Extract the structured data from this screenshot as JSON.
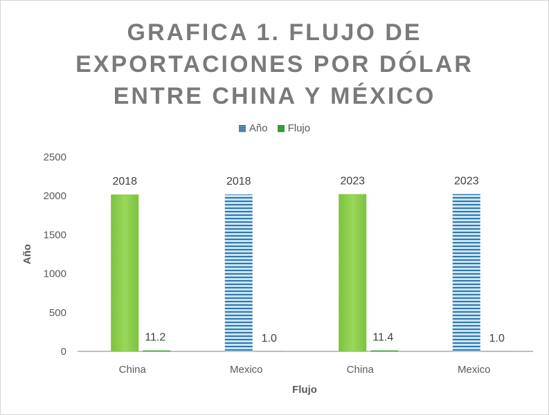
{
  "title_lines": [
    "GRAFICA 1. FLUJO DE",
    "EXPORTACIONES POR DÓLAR",
    "ENTRE CHINA Y MÉXICO"
  ],
  "legend": [
    {
      "label": "Año",
      "color": "#1f6e9c"
    },
    {
      "label": "Flujo",
      "color": "#2e9a2e"
    }
  ],
  "chart_data": {
    "type": "bar",
    "title": "GRAFICA 1. FLUJO DE EXPORTACIONES POR DÓLAR ENTRE CHINA Y MÉXICO",
    "xlabel": "Flujo",
    "ylabel": "Año",
    "categories": [
      "China",
      "Mexico",
      "China",
      "Mexico"
    ],
    "series": [
      {
        "name": "Año",
        "values": [
          2018,
          2018,
          2023,
          2023
        ],
        "labels": [
          "2018",
          "2018",
          "2023",
          "2023"
        ]
      },
      {
        "name": "Flujo",
        "values": [
          11.2,
          1.0,
          11.4,
          1.0
        ],
        "labels": [
          "11.2",
          "1.0",
          "11.4",
          "1.0"
        ]
      }
    ],
    "bar_styles": [
      "green",
      "blue-striped",
      "green",
      "blue-striped"
    ],
    "ylim": [
      0,
      2500
    ],
    "yticks": [
      "0",
      "500",
      "1000",
      "1500",
      "2000",
      "2500"
    ],
    "grid": false,
    "legend_position": "top"
  }
}
